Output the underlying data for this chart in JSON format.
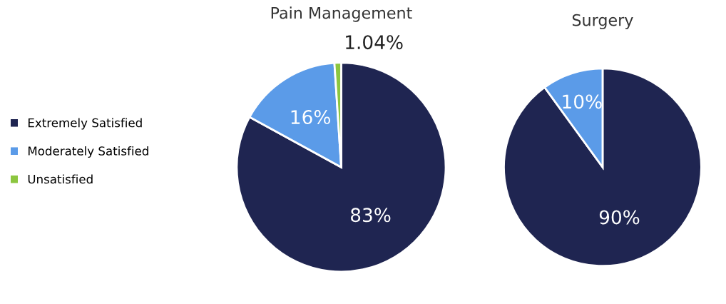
{
  "chart_data": [
    {
      "type": "pie",
      "title": "Pain Management",
      "categories": [
        "Extremely Satisfied",
        "Moderately Satisfied",
        "Unsatisfied"
      ],
      "values": [
        83,
        16,
        1.04
      ],
      "value_labels": [
        "83%",
        "16%",
        "1.04%"
      ],
      "colors": [
        "#1f2551",
        "#5b9be8",
        "#8cc63f"
      ],
      "legend": "left"
    },
    {
      "type": "pie",
      "title": "Surgery",
      "categories": [
        null,
        null
      ],
      "values": [
        90,
        10
      ],
      "value_labels": [
        "90%",
        "10%"
      ],
      "colors": [
        "#1f2551",
        "#5b9be8"
      ]
    }
  ]
}
